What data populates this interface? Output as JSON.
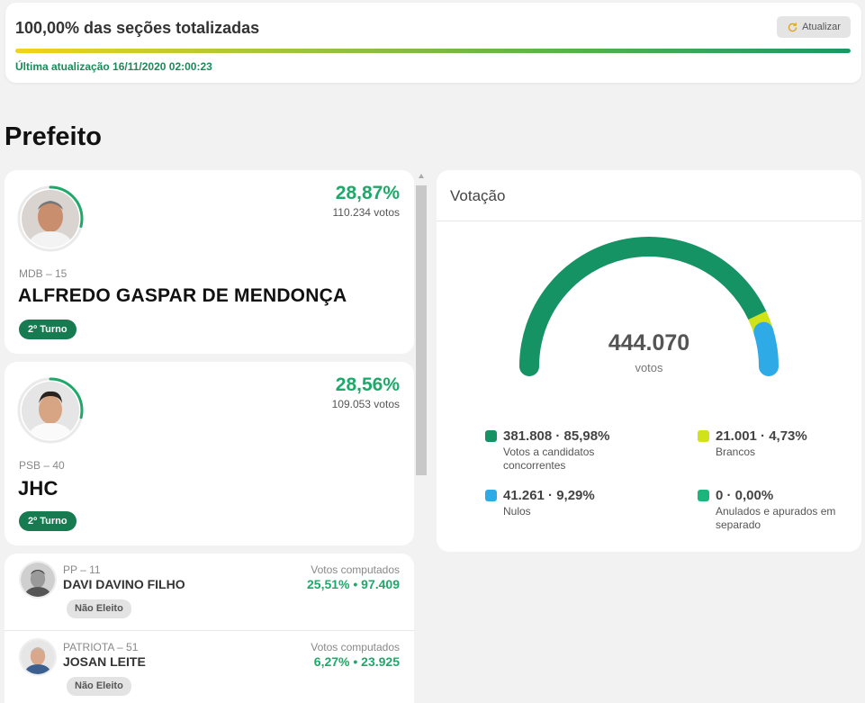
{
  "status": {
    "title": "100,00% das seções totalizadas",
    "refresh_label": "Atualizar",
    "updated": "Última atualização 16/11/2020 02:00:23",
    "progress_percent": 100
  },
  "section_title": "Prefeito",
  "leaders": [
    {
      "party": "MDB – 15",
      "name": "ALFREDO GASPAR DE MENDONÇA",
      "percent": "28,87%",
      "votes": "110.234 votos",
      "badge": "2º Turno",
      "ring_fraction": 0.2887
    },
    {
      "party": "PSB – 40",
      "name": "JHC",
      "percent": "28,56%",
      "votes": "109.053 votos",
      "badge": "2º Turno",
      "ring_fraction": 0.2856
    }
  ],
  "others": [
    {
      "party": "PP – 11",
      "name": "DAVI DAVINO FILHO",
      "label": "Votos computados",
      "stats": "25,51%  •  97.409",
      "badge": "Não Eleito"
    },
    {
      "party": "PATRIOTA – 51",
      "name": "JOSAN LEITE",
      "label": "Votos computados",
      "stats": "6,27%  •  23.925",
      "badge": "Não Eleito"
    }
  ],
  "votacao": {
    "title": "Votação",
    "total": "444.070",
    "total_label": "votos",
    "legend": [
      {
        "value": "381.808 · 85,98%",
        "desc": "Votos a candidatos concorrentes",
        "color": "#159364",
        "fraction": 0.8598
      },
      {
        "value": "21.001 · 4,73%",
        "desc": "Brancos",
        "color": "#cfe21a",
        "fraction": 0.0473
      },
      {
        "value": "41.261 · 9,29%",
        "desc": "Nulos",
        "color": "#2eaae6",
        "fraction": 0.0929
      },
      {
        "value": "0 · 0,00%",
        "desc": "Anulados e apurados em separado",
        "color": "#1cb57b",
        "fraction": 0.0
      }
    ]
  },
  "colors": {
    "accent_green": "#1fa86a",
    "badge_green": "#177b51"
  }
}
